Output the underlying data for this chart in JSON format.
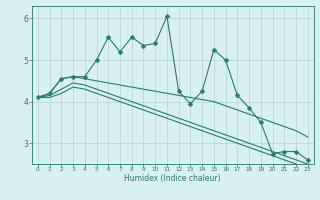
{
  "xlabel": "Humidex (Indice chaleur)",
  "x_values": [
    0,
    1,
    2,
    3,
    4,
    5,
    6,
    7,
    8,
    9,
    10,
    11,
    12,
    13,
    14,
    15,
    16,
    17,
    18,
    19,
    20,
    21,
    22,
    23
  ],
  "line1": [
    4.1,
    4.2,
    4.55,
    4.6,
    4.6,
    5.0,
    5.55,
    5.2,
    5.55,
    5.35,
    5.4,
    6.05,
    4.25,
    3.95,
    4.25,
    5.25,
    5.0,
    4.15,
    3.85,
    3.5,
    2.75,
    2.8,
    2.8,
    2.6
  ],
  "line2": [
    4.1,
    4.2,
    4.55,
    4.6,
    4.55,
    4.5,
    4.45,
    4.4,
    4.35,
    4.3,
    4.25,
    4.2,
    4.15,
    4.1,
    4.05,
    4.0,
    3.9,
    3.8,
    3.7,
    3.6,
    3.5,
    3.4,
    3.3,
    3.15
  ],
  "line3": [
    4.1,
    4.15,
    4.3,
    4.45,
    4.4,
    4.3,
    4.2,
    4.1,
    4.0,
    3.9,
    3.8,
    3.7,
    3.6,
    3.5,
    3.4,
    3.3,
    3.2,
    3.1,
    3.0,
    2.9,
    2.8,
    2.7,
    2.6,
    2.5
  ],
  "line4": [
    4.1,
    4.1,
    4.2,
    4.35,
    4.3,
    4.2,
    4.1,
    4.0,
    3.9,
    3.8,
    3.7,
    3.6,
    3.5,
    3.4,
    3.3,
    3.2,
    3.1,
    3.0,
    2.9,
    2.8,
    2.7,
    2.6,
    2.5,
    2.4
  ],
  "line_color": "#2a7a6a",
  "bg_color": "#d8f0f0",
  "grid_color": "#b8d8d8",
  "ylim": [
    2.5,
    6.3
  ],
  "yticks": [
    3,
    4,
    5,
    6
  ],
  "xticks": [
    0,
    1,
    2,
    3,
    4,
    5,
    6,
    7,
    8,
    9,
    10,
    11,
    12,
    13,
    14,
    15,
    16,
    17,
    18,
    19,
    20,
    21,
    22,
    23
  ],
  "markersize": 2.5
}
